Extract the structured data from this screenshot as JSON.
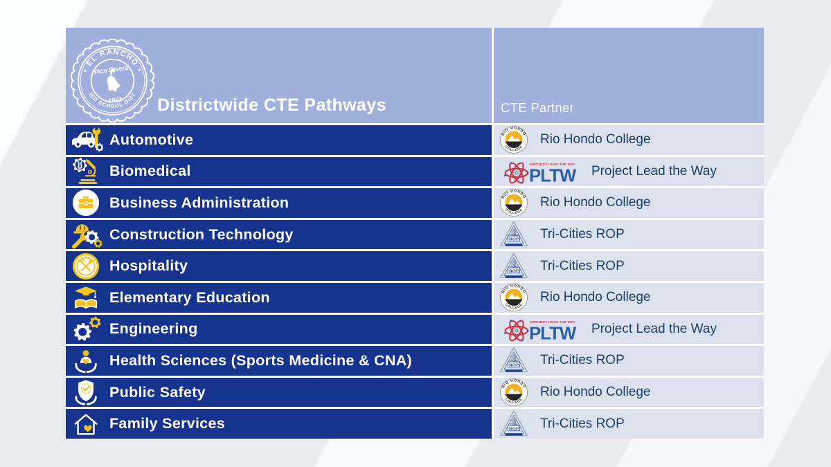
{
  "header": {
    "title": "Districtwide CTE Pathways",
    "partner_column_label": "CTE Partner",
    "district_seal": {
      "icon": "el-rancho-usd-seal",
      "arc_top": "• EL RANCHO •",
      "arc_bottom": "UNIFIED SCHOOL DISTRICT",
      "city": "Pico Rivera",
      "year": "1962"
    }
  },
  "partners": {
    "rio_hondo": {
      "name": "Rio Hondo College",
      "seal_top": "RIO HONDO",
      "seal_bottom": "COLLEGE"
    },
    "pltw": {
      "name": "Project Lead the Way",
      "tagline": "PROJECT LEAD THE WAY",
      "wordmark": "PLTW"
    },
    "tri_cities": {
      "name": "Tri-Cities ROP",
      "logo_small": "Tri-Cities",
      "logo_label": "ROP"
    }
  },
  "rows": [
    {
      "pathway": "Automotive",
      "icon": "automotive-icon",
      "partner": "Rio Hondo College",
      "partner_key": "rio_hondo"
    },
    {
      "pathway": "Biomedical",
      "icon": "biomedical-icon",
      "partner": "Project Lead the Way",
      "partner_key": "pltw"
    },
    {
      "pathway": "Business Administration",
      "icon": "briefcase-icon",
      "partner": "Rio Hondo College",
      "partner_key": "rio_hondo"
    },
    {
      "pathway": "Construction Technology",
      "icon": "hardhat-wrench-icon",
      "partner": "Tri-Cities ROP",
      "partner_key": "tri_cities"
    },
    {
      "pathway": "Hospitality",
      "icon": "plate-utensils-icon",
      "partner": "Tri-Cities ROP",
      "partner_key": "tri_cities"
    },
    {
      "pathway": "Elementary Education",
      "icon": "gradcap-book-icon",
      "partner": "Rio Hondo College",
      "partner_key": "rio_hondo"
    },
    {
      "pathway": "Engineering",
      "icon": "gears-icon",
      "partner": "Project Lead the Way",
      "partner_key": "pltw"
    },
    {
      "pathway": "Health Sciences (Sports Medicine & CNA)",
      "icon": "care-hands-icon",
      "partner": "Tri-Cities ROP",
      "partner_key": "tri_cities"
    },
    {
      "pathway": "Public Safety",
      "icon": "shield-hands-icon",
      "partner": "Rio Hondo College",
      "partner_key": "rio_hondo"
    },
    {
      "pathway": "Family Services",
      "icon": "house-heart-icon",
      "partner": "Tri-Cities ROP",
      "partner_key": "tri_cities"
    }
  ],
  "colors": {
    "row_blue": "#16338e",
    "header_periwinkle": "#a1afdd",
    "partner_cell": "#dbe2ee",
    "partner_text": "#1d3e66",
    "accent_gold": "#f2c21f",
    "pltw_red": "#d5283c",
    "pltw_blue": "#2b5ea7",
    "white": "#ffffff"
  }
}
